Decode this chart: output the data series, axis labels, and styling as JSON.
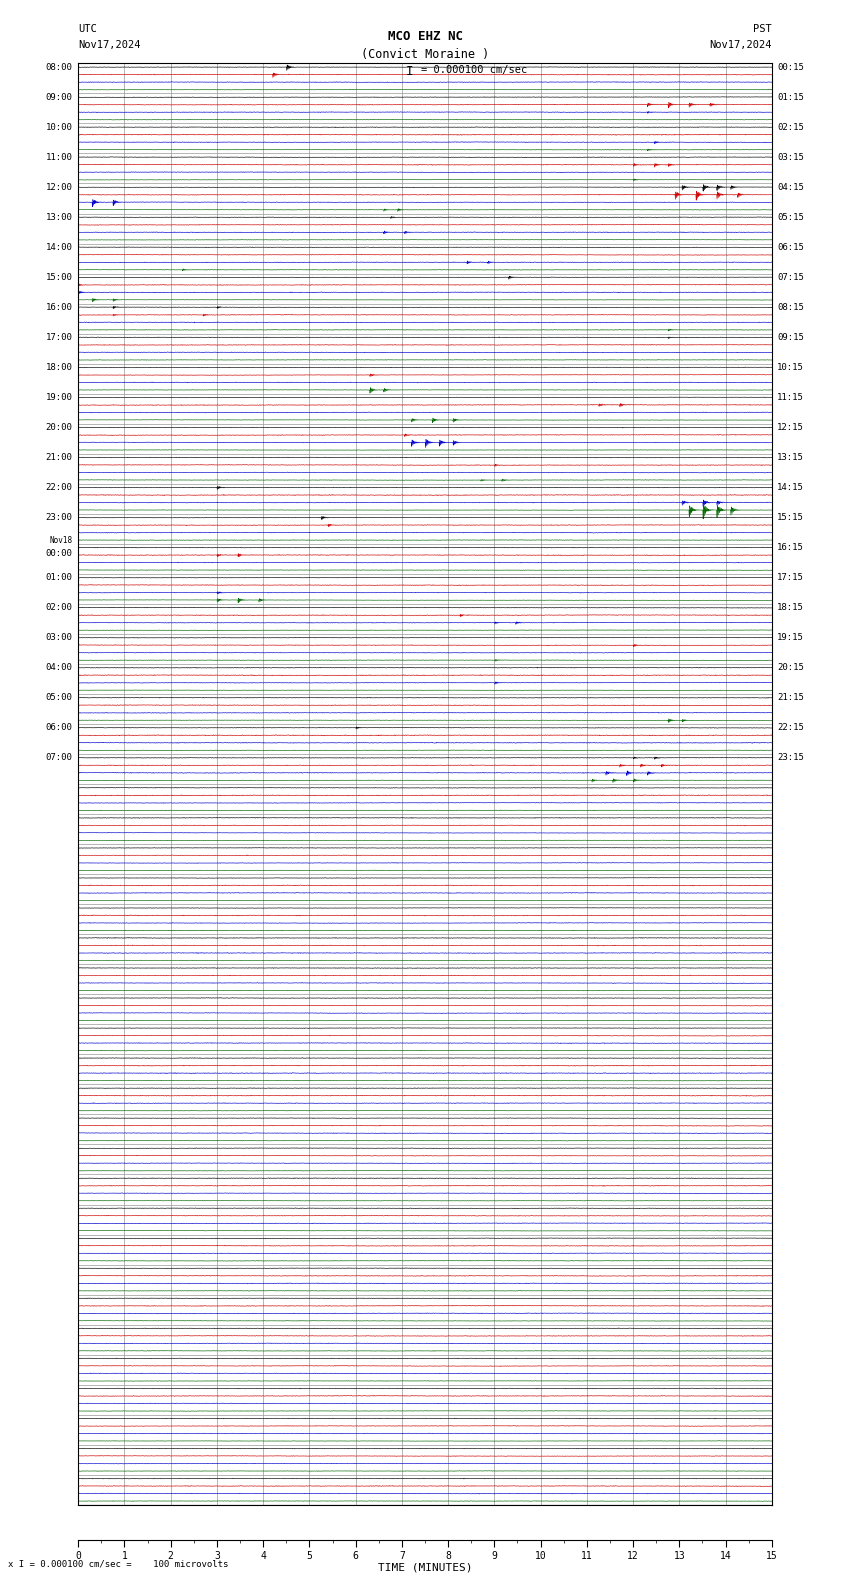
{
  "title_line1": "MCO EHZ NC",
  "title_line2": "(Convict Moraine )",
  "title_scale": "I = 0.000100 cm/sec",
  "utc_label": "UTC",
  "utc_date": "Nov17,2024",
  "pst_label": "PST",
  "pst_date": "Nov17,2024",
  "footer": "x I = 0.000100 cm/sec =    100 microvolts",
  "xlabel": "TIME (MINUTES)",
  "bg_color": "#ffffff",
  "grid_color": "#999999",
  "trace_colors": [
    "#000000",
    "#cc0000",
    "#0000cc",
    "#006600"
  ],
  "num_row_groups": 48,
  "traces_per_group": 4,
  "time_minutes": 15,
  "left_labels_utc": [
    "08:00",
    "",
    "",
    "",
    "09:00",
    "",
    "",
    "",
    "10:00",
    "",
    "",
    "",
    "11:00",
    "",
    "",
    "",
    "12:00",
    "",
    "",
    "",
    "13:00",
    "",
    "",
    "",
    "14:00",
    "",
    "",
    "",
    "15:00",
    "",
    "",
    "",
    "16:00",
    "",
    "",
    "",
    "17:00",
    "",
    "",
    "",
    "18:00",
    "",
    "",
    "",
    "19:00",
    "",
    "",
    "",
    "20:00",
    "",
    "",
    "",
    "21:00",
    "",
    "",
    "",
    "22:00",
    "",
    "",
    "",
    "23:00",
    "",
    "",
    "",
    "Nov18\n00:00",
    "",
    "",
    "",
    "01:00",
    "",
    "",
    "",
    "02:00",
    "",
    "",
    "",
    "03:00",
    "",
    "",
    "",
    "04:00",
    "",
    "",
    "",
    "05:00",
    "",
    "",
    "",
    "06:00",
    "",
    "",
    "",
    "07:00",
    "",
    "",
    ""
  ],
  "right_labels_pst": [
    "00:15",
    "",
    "",
    "",
    "01:15",
    "",
    "",
    "",
    "02:15",
    "",
    "",
    "",
    "03:15",
    "",
    "",
    "",
    "04:15",
    "",
    "",
    "",
    "05:15",
    "",
    "",
    "",
    "06:15",
    "",
    "",
    "",
    "07:15",
    "",
    "",
    "",
    "08:15",
    "",
    "",
    "",
    "09:15",
    "",
    "",
    "",
    "10:15",
    "",
    "",
    "",
    "11:15",
    "",
    "",
    "",
    "12:15",
    "",
    "",
    "",
    "13:15",
    "",
    "",
    "",
    "14:15",
    "",
    "",
    "",
    "15:15",
    "",
    "",
    "",
    "16:15",
    "",
    "",
    "",
    "17:15",
    "",
    "",
    "",
    "18:15",
    "",
    "",
    "",
    "19:15",
    "",
    "",
    "",
    "20:15",
    "",
    "",
    "",
    "21:15",
    "",
    "",
    "",
    "22:15",
    "",
    "",
    "",
    "23:15",
    "",
    "",
    ""
  ],
  "figsize": [
    8.5,
    15.84
  ],
  "dpi": 100
}
